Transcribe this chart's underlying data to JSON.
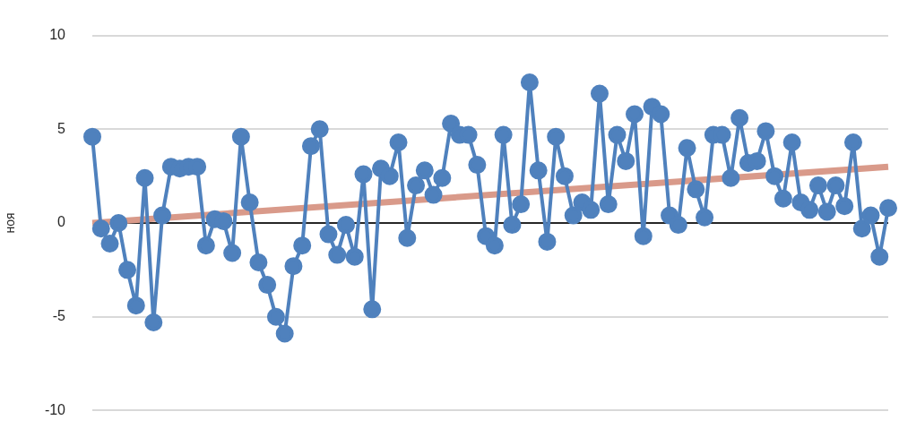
{
  "chart_data": {
    "type": "line",
    "ylabel": "ноя",
    "categories": [
      null,
      null,
      null,
      null,
      null,
      null,
      null,
      null,
      null,
      null,
      null,
      null,
      null,
      null,
      null,
      null,
      null,
      null,
      null,
      null,
      null,
      null,
      null,
      null,
      null,
      null,
      null,
      null,
      null,
      null,
      null,
      null,
      null,
      null,
      null,
      null,
      null,
      null,
      null,
      null,
      null,
      null,
      null,
      null,
      null,
      null,
      null,
      null,
      null,
      null,
      null,
      null,
      null,
      null,
      null,
      null,
      null,
      null,
      null,
      null,
      null,
      null,
      null,
      null,
      null,
      null,
      null,
      null,
      null,
      null,
      null,
      null,
      null,
      null,
      null,
      null,
      null,
      null,
      null,
      null,
      null,
      null,
      null,
      null,
      null,
      null,
      null,
      null,
      null,
      null,
      null,
      null
    ],
    "series": [
      {
        "color": "#4f81bd",
        "marker": "circle",
        "values": [
          4.6,
          -0.3,
          -1.1,
          0,
          -2.5,
          -4.4,
          2.4,
          -5.3,
          0.4,
          3.0,
          2.9,
          3.0,
          3.0,
          -1.2,
          0.2,
          0.1,
          -1.6,
          4.6,
          1.1,
          -2.1,
          -3.3,
          -5.0,
          -5.9,
          -2.3,
          -1.2,
          4.1,
          5.0,
          -0.6,
          -1.7,
          -0.1,
          -1.8,
          2.6,
          -4.6,
          2.9,
          2.5,
          4.3,
          -0.8,
          2.0,
          2.8,
          1.5,
          2.4,
          5.3,
          4.7,
          4.7,
          3.1,
          -0.7,
          -1.2,
          4.7,
          -0.1,
          1.0,
          7.5,
          2.8,
          -1.0,
          4.6,
          2.5,
          0.4,
          1.1,
          0.7,
          6.9,
          1.0,
          4.7,
          3.3,
          5.8,
          -0.7,
          6.2,
          5.8,
          0.4,
          -0.1,
          4.0,
          1.8,
          0.3,
          4.7,
          4.7,
          2.4,
          5.6,
          3.2,
          3.3,
          4.9,
          2.5,
          1.3,
          4.3,
          1.1,
          0.7,
          2.0,
          0.6,
          2.0,
          0.9,
          4.3,
          -0.3,
          0.4,
          -1.8,
          0.8
        ]
      },
      {
        "color": "#d99a8a",
        "marker": "none",
        "values": [
          0.0,
          null,
          null,
          null,
          null,
          null,
          null,
          null,
          null,
          null,
          null,
          null,
          null,
          null,
          null,
          null,
          null,
          null,
          null,
          null,
          null,
          null,
          null,
          null,
          null,
          null,
          null,
          null,
          null,
          null,
          null,
          null,
          null,
          null,
          null,
          null,
          null,
          null,
          null,
          null,
          null,
          null,
          null,
          null,
          null,
          null,
          null,
          null,
          null,
          null,
          null,
          null,
          null,
          null,
          null,
          null,
          null,
          null,
          null,
          null,
          null,
          null,
          null,
          null,
          null,
          null,
          null,
          null,
          null,
          null,
          null,
          null,
          null,
          null,
          null,
          null,
          null,
          null,
          null,
          null,
          null,
          null,
          null,
          null,
          null,
          null,
          null,
          null,
          null,
          null,
          null,
          3.0
        ]
      }
    ],
    "ylim": [
      -10,
      10
    ],
    "yticks": [
      -10,
      -5,
      0,
      5,
      10
    ],
    "grid": "y",
    "legend": false,
    "tick_labels": "y",
    "line_style": "solid"
  }
}
